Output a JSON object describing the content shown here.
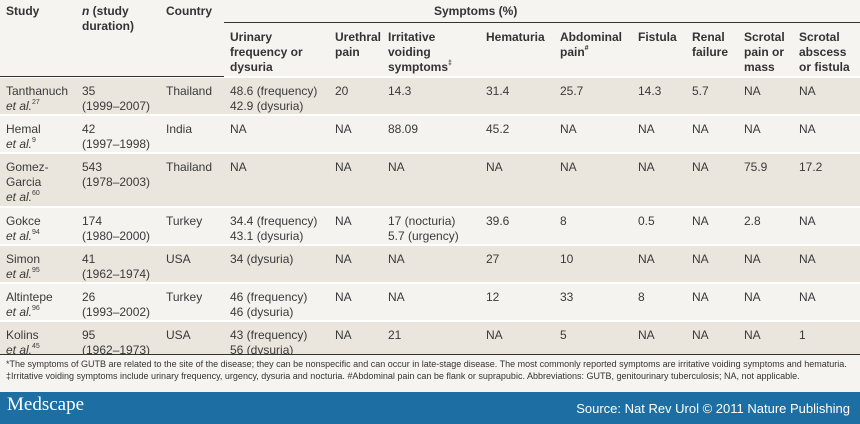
{
  "headers": {
    "study": "Study",
    "n_italic": "n",
    "n_rest": " (study duration)",
    "country": "Country",
    "symptoms": "Symptoms (%)",
    "cols": [
      {
        "t": "Urinary frequency or dysuria",
        "s": ""
      },
      {
        "t": "Urethral pain",
        "s": ""
      },
      {
        "t": "Irritative voiding symptoms",
        "s": "‡"
      },
      {
        "t": "Hematuria",
        "s": ""
      },
      {
        "t": "Abdominal pain",
        "s": "#"
      },
      {
        "t": "Fistula",
        "s": ""
      },
      {
        "t": "Renal failure",
        "s": ""
      },
      {
        "t": "Scrotal pain or mass",
        "s": ""
      },
      {
        "t": "Scrotal abscess or fistula",
        "s": ""
      }
    ]
  },
  "rows": [
    {
      "name": "Tanthanuch",
      "etal": "et al.",
      "ref": "27",
      "n": "35",
      "dur": "(1999–2007)",
      "country": "Thailand",
      "vals": [
        "48.6 (frequency)\n42.9 (dysuria)",
        "20",
        "14.3",
        "31.4",
        "25.7",
        "14.3",
        "5.7",
        "NA",
        "NA"
      ]
    },
    {
      "name": "Hemal",
      "etal": "et al.",
      "ref": "9",
      "n": "42",
      "dur": "(1997–1998)",
      "country": "India",
      "vals": [
        "NA",
        "NA",
        "88.09",
        "45.2",
        "NA",
        "NA",
        "NA",
        "NA",
        "NA"
      ]
    },
    {
      "name": "Gomez-\nGarcia",
      "etal": "et al.",
      "ref": "60",
      "n": "543",
      "dur": "(1978–2003)",
      "country": "Thailand",
      "vals": [
        "NA",
        "NA",
        "NA",
        "NA",
        "NA",
        "NA",
        "NA",
        "75.9",
        "17.2"
      ]
    },
    {
      "name": "Gokce",
      "etal": "et al.",
      "ref": "94",
      "n": "174",
      "dur": "(1980–2000)",
      "country": "Turkey",
      "vals": [
        "34.4 (frequency)\n43.1 (dysuria)",
        "NA",
        "17 (nocturia)\n5.7 (urgency)",
        "39.6",
        "8",
        "0.5",
        "NA",
        "2.8",
        "NA"
      ]
    },
    {
      "name": "Simon",
      "etal": "et al.",
      "ref": "95",
      "n": "41",
      "dur": "(1962–1974)",
      "country": "USA",
      "vals": [
        "34 (dysuria)",
        "NA",
        "NA",
        "27",
        "10",
        "NA",
        "NA",
        "NA",
        "NA"
      ]
    },
    {
      "name": "Altintepe",
      "etal": "et al.",
      "ref": "96",
      "n": "26",
      "dur": "(1993–2002)",
      "country": "Turkey",
      "vals": [
        "46 (frequency)\n46 (dysuria)",
        "NA",
        "NA",
        "12",
        "33",
        "8",
        "NA",
        "NA",
        "NA"
      ]
    },
    {
      "name": "Kolins",
      "etal": "et al.",
      "ref": "45",
      "n": "95",
      "dur": "(1962–1973)",
      "country": "USA",
      "vals": [
        "43 (frequency)\n56 (dysuria)",
        "NA",
        "21",
        "NA",
        "5",
        "NA",
        "NA",
        "NA",
        "1"
      ]
    }
  ],
  "footnote": "*The symptoms of GUTB are related to the site of the disease; they can be nonspecific and can occur in late-stage disease. The most commonly reported symptoms are irritative voiding symptoms and hematuria. ‡Irritative voiding symptoms include urinary frequency, urgency, dysuria and nocturia. #Abdominal pain can be flank or suprapubic. Abbreviations: GUTB, genitourinary tuberculosis; NA, not applicable.",
  "footer": {
    "logo": "Medscape",
    "source": "Source: Nat Rev Urol © 2011 Nature Publishing",
    "bar_color": "#1d6fa3"
  }
}
